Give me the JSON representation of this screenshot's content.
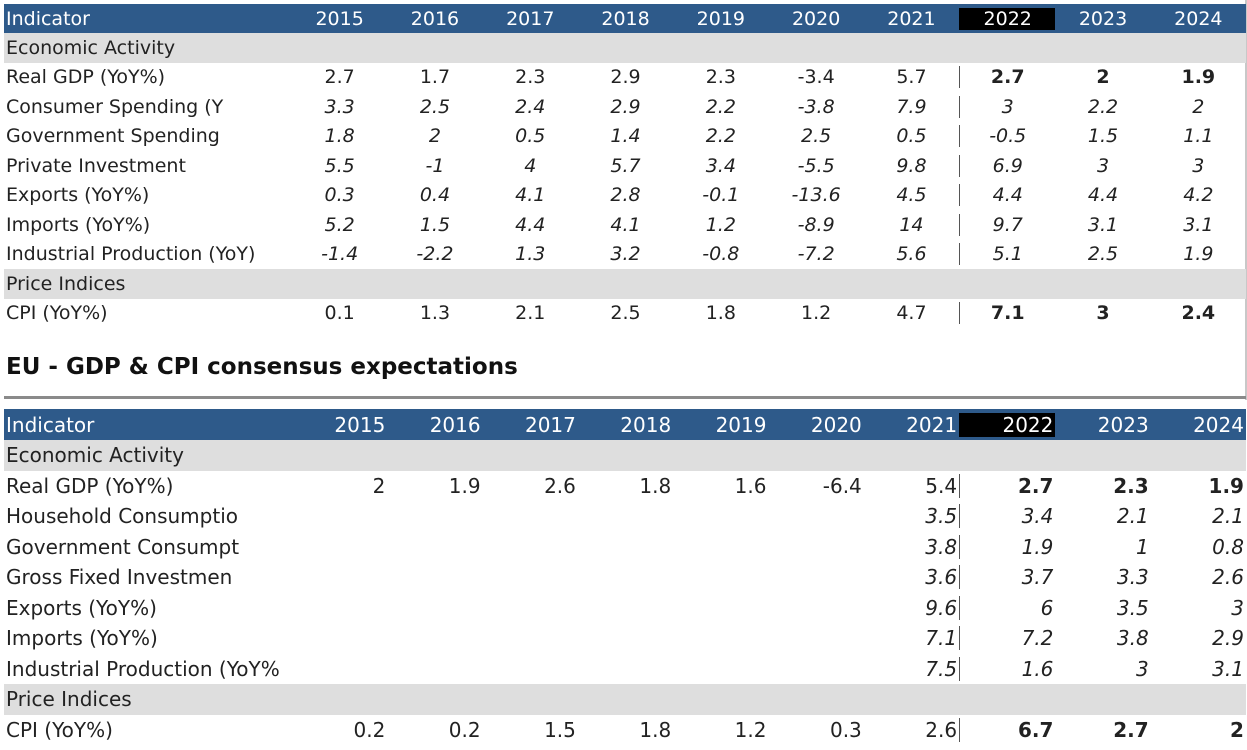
{
  "years": [
    "2015",
    "2016",
    "2017",
    "2018",
    "2019",
    "2020",
    "2021",
    "2022",
    "2023",
    "2024"
  ],
  "table1": {
    "header_label": "Indicator",
    "section_economic": "Economic Activity",
    "section_price": "Price Indices",
    "rows": [
      {
        "label": "Real GDP (YoY%)",
        "values": [
          "2.7",
          "1.7",
          "2.3",
          "2.9",
          "2.3",
          "-3.4",
          "5.7",
          "2.7",
          "2",
          "1.9"
        ]
      },
      {
        "label": "Consumer Spending (Y",
        "values": [
          "3.3",
          "2.5",
          "2.4",
          "2.9",
          "2.2",
          "-3.8",
          "7.9",
          "3",
          "2.2",
          "2"
        ]
      },
      {
        "label": "Government Spending",
        "values": [
          "1.8",
          "2",
          "0.5",
          "1.4",
          "2.2",
          "2.5",
          "0.5",
          "-0.5",
          "1.5",
          "1.1"
        ]
      },
      {
        "label": "Private Investment",
        "values": [
          "5.5",
          "-1",
          "4",
          "5.7",
          "3.4",
          "-5.5",
          "9.8",
          "6.9",
          "3",
          "3"
        ]
      },
      {
        "label": "Exports (YoY%)",
        "values": [
          "0.3",
          "0.4",
          "4.1",
          "2.8",
          "-0.1",
          "-13.6",
          "4.5",
          "4.4",
          "4.4",
          "4.2"
        ]
      },
      {
        "label": "Imports (YoY%)",
        "values": [
          "5.2",
          "1.5",
          "4.4",
          "4.1",
          "1.2",
          "-8.9",
          "14",
          "9.7",
          "3.1",
          "3.1"
        ]
      },
      {
        "label": "Industrial Production (YoY)",
        "values": [
          "-1.4",
          "-2.2",
          "1.3",
          "3.2",
          "-0.8",
          "-7.2",
          "5.6",
          "5.1",
          "2.5",
          "1.9"
        ]
      }
    ],
    "cpi": {
      "label": "CPI (YoY%)",
      "values": [
        "0.1",
        "1.3",
        "2.1",
        "2.5",
        "1.8",
        "1.2",
        "4.7",
        "7.1",
        "3",
        "2.4"
      ]
    }
  },
  "eu_title": "EU - GDP & CPI consensus expectations",
  "table2": {
    "header_label": "Indicator",
    "section_economic": "Economic Activity",
    "section_price": "Price Indices",
    "rows": [
      {
        "label": "Real GDP (YoY%)",
        "values": [
          "2",
          "1.9",
          "2.6",
          "1.8",
          "1.6",
          "-6.4",
          "5.4",
          "2.7",
          "2.3",
          "1.9"
        ]
      },
      {
        "label": "Household Consumptio",
        "values": [
          "",
          "",
          "",
          "",
          "",
          "",
          "3.5",
          "3.4",
          "2.1",
          "2.1"
        ]
      },
      {
        "label": "Government Consumpt",
        "values": [
          "",
          "",
          "",
          "",
          "",
          "",
          "3.8",
          "1.9",
          "1",
          "0.8"
        ]
      },
      {
        "label": "Gross Fixed Investmen",
        "values": [
          "",
          "",
          "",
          "",
          "",
          "",
          "3.6",
          "3.7",
          "3.3",
          "2.6"
        ]
      },
      {
        "label": "Exports (YoY%)",
        "values": [
          "",
          "",
          "",
          "",
          "",
          "",
          "9.6",
          "6",
          "3.5",
          "3"
        ]
      },
      {
        "label": "Imports (YoY%)",
        "values": [
          "",
          "",
          "",
          "",
          "",
          "",
          "7.1",
          "7.2",
          "3.8",
          "2.9"
        ]
      },
      {
        "label": "Industrial Production (YoY%",
        "values": [
          "",
          "",
          "",
          "",
          "",
          "",
          "7.5",
          "1.6",
          "3",
          "3.1"
        ]
      }
    ],
    "cpi": {
      "label": "CPI (YoY%)",
      "values": [
        "0.2",
        "0.2",
        "1.5",
        "1.8",
        "1.2",
        "0.3",
        "2.6",
        "6.7",
        "2.7",
        "2"
      ]
    }
  },
  "colors": {
    "header_bg": "#2e5a8a",
    "forecast_header_bg": "#000000",
    "section_bg": "#dedede"
  }
}
